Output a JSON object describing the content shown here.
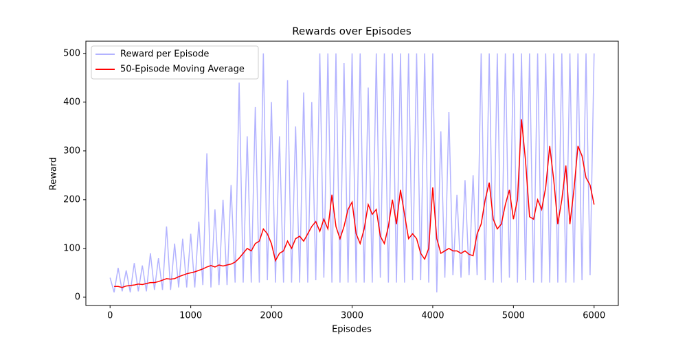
{
  "chart_data": {
    "type": "line",
    "title": "Rewards over Episodes",
    "xlabel": "Episodes",
    "ylabel": "Reward",
    "xlim": [
      -300,
      6300
    ],
    "ylim": [
      -17,
      525
    ],
    "xticks": [
      0,
      1000,
      2000,
      3000,
      4000,
      5000,
      6000
    ],
    "yticks": [
      0,
      100,
      200,
      300,
      400,
      500
    ],
    "grid": false,
    "legend": "upper left",
    "series": [
      {
        "name": "Reward per Episode",
        "color": "#b3b3ff",
        "x": [
          0,
          50,
          100,
          150,
          200,
          250,
          300,
          350,
          400,
          450,
          500,
          550,
          600,
          650,
          700,
          750,
          800,
          850,
          900,
          950,
          1000,
          1050,
          1100,
          1150,
          1200,
          1250,
          1300,
          1350,
          1400,
          1450,
          1500,
          1550,
          1600,
          1650,
          1700,
          1750,
          1800,
          1850,
          1900,
          1950,
          2000,
          2050,
          2100,
          2150,
          2200,
          2250,
          2300,
          2350,
          2400,
          2450,
          2500,
          2550,
          2600,
          2650,
          2700,
          2750,
          2800,
          2850,
          2900,
          2950,
          3000,
          3050,
          3100,
          3150,
          3200,
          3250,
          3300,
          3350,
          3400,
          3450,
          3500,
          3550,
          3600,
          3650,
          3700,
          3750,
          3800,
          3850,
          3900,
          3950,
          4000,
          4050,
          4100,
          4150,
          4200,
          4250,
          4300,
          4350,
          4400,
          4450,
          4500,
          4550,
          4600,
          4650,
          4700,
          4750,
          4800,
          4850,
          4900,
          4950,
          5000,
          5050,
          5100,
          5150,
          5200,
          5250,
          5300,
          5350,
          5400,
          5450,
          5500,
          5550,
          5600,
          5650,
          5700,
          5750,
          5800,
          5850,
          5900,
          5950,
          6000
        ],
        "values": [
          40,
          10,
          60,
          12,
          55,
          10,
          70,
          12,
          65,
          12,
          90,
          15,
          80,
          15,
          145,
          15,
          110,
          20,
          120,
          20,
          130,
          20,
          155,
          25,
          295,
          20,
          180,
          25,
          200,
          25,
          230,
          30,
          440,
          30,
          330,
          30,
          390,
          30,
          500,
          35,
          400,
          30,
          330,
          30,
          445,
          30,
          350,
          30,
          420,
          30,
          400,
          35,
          500,
          40,
          500,
          30,
          500,
          30,
          480,
          30,
          500,
          30,
          500,
          30,
          430,
          30,
          500,
          40,
          500,
          30,
          500,
          30,
          500,
          30,
          500,
          35,
          500,
          35,
          500,
          30,
          500,
          10,
          340,
          40,
          380,
          45,
          210,
          40,
          240,
          45,
          250,
          45,
          500,
          35,
          500,
          30,
          500,
          30,
          500,
          40,
          500,
          30,
          500,
          35,
          500,
          30,
          500,
          30,
          500,
          30,
          500,
          30,
          500,
          30,
          500,
          30,
          500,
          35,
          500,
          45,
          500
        ]
      },
      {
        "name": "50-Episode Moving Average",
        "color": "#ff0000",
        "x": [
          50,
          100,
          150,
          200,
          250,
          300,
          350,
          400,
          450,
          500,
          550,
          600,
          650,
          700,
          750,
          800,
          850,
          900,
          950,
          1000,
          1050,
          1100,
          1150,
          1200,
          1250,
          1300,
          1350,
          1400,
          1450,
          1500,
          1550,
          1600,
          1650,
          1700,
          1750,
          1800,
          1850,
          1900,
          1950,
          2000,
          2050,
          2100,
          2150,
          2200,
          2250,
          2300,
          2350,
          2400,
          2450,
          2500,
          2550,
          2600,
          2650,
          2700,
          2750,
          2800,
          2850,
          2900,
          2950,
          3000,
          3050,
          3100,
          3150,
          3200,
          3250,
          3300,
          3350,
          3400,
          3450,
          3500,
          3550,
          3600,
          3650,
          3700,
          3750,
          3800,
          3850,
          3900,
          3950,
          4000,
          4050,
          4100,
          4150,
          4200,
          4250,
          4300,
          4350,
          4400,
          4450,
          4500,
          4550,
          4600,
          4650,
          4700,
          4750,
          4800,
          4850,
          4900,
          4950,
          5000,
          5050,
          5100,
          5150,
          5200,
          5250,
          5300,
          5350,
          5400,
          5450,
          5500,
          5550,
          5600,
          5650,
          5700,
          5750,
          5800,
          5850,
          5900,
          5950,
          6000
        ],
        "values": [
          22,
          22,
          20,
          23,
          24,
          25,
          27,
          26,
          28,
          30,
          30,
          32,
          35,
          38,
          37,
          38,
          42,
          45,
          48,
          50,
          52,
          55,
          58,
          62,
          65,
          62,
          66,
          64,
          66,
          68,
          72,
          80,
          90,
          100,
          95,
          110,
          115,
          140,
          130,
          110,
          75,
          90,
          95,
          115,
          100,
          120,
          125,
          115,
          130,
          145,
          155,
          135,
          160,
          140,
          210,
          145,
          120,
          145,
          180,
          195,
          130,
          110,
          140,
          190,
          170,
          180,
          125,
          110,
          145,
          200,
          150,
          220,
          170,
          120,
          130,
          120,
          90,
          78,
          100,
          225,
          120,
          90,
          95,
          100,
          95,
          95,
          90,
          95,
          88,
          85,
          130,
          150,
          200,
          235,
          160,
          140,
          150,
          190,
          220,
          160,
          200,
          365,
          280,
          165,
          160,
          200,
          180,
          225,
          310,
          240,
          150,
          200,
          270,
          150,
          220,
          310,
          290,
          245,
          230,
          190
        ]
      }
    ]
  }
}
